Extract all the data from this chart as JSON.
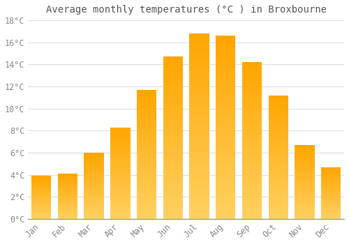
{
  "title": "Average monthly temperatures (°C ) in Broxbourne",
  "months": [
    "Jan",
    "Feb",
    "Mar",
    "Apr",
    "May",
    "Jun",
    "Jul",
    "Aug",
    "Sep",
    "Oct",
    "Nov",
    "Dec"
  ],
  "values": [
    3.9,
    4.1,
    6.0,
    8.3,
    11.7,
    14.7,
    16.8,
    16.6,
    14.2,
    11.2,
    6.7,
    4.7
  ],
  "bar_color_top": "#FFA500",
  "bar_color_bottom": "#FFD060",
  "background_color": "#FFFFFF",
  "grid_color": "#DDDDDD",
  "text_color": "#888888",
  "ylim": [
    0,
    18
  ],
  "yticks": [
    0,
    2,
    4,
    6,
    8,
    10,
    12,
    14,
    16,
    18
  ],
  "ytick_labels": [
    "0°C",
    "2°C",
    "4°C",
    "6°C",
    "8°C",
    "10°C",
    "12°C",
    "14°C",
    "16°C",
    "18°C"
  ],
  "title_fontsize": 10,
  "tick_fontsize": 8.5,
  "bar_width": 0.75
}
